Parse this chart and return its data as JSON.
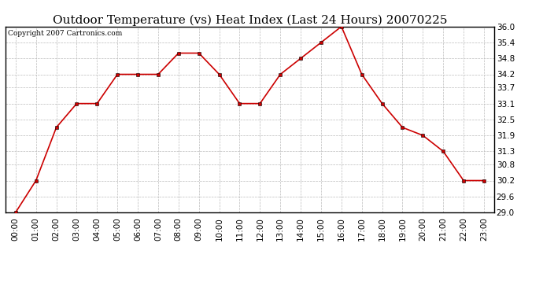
{
  "title": "Outdoor Temperature (vs) Heat Index (Last 24 Hours) 20070225",
  "copyright_text": "Copyright 2007 Cartronics.com",
  "x_labels": [
    "00:00",
    "01:00",
    "02:00",
    "03:00",
    "04:00",
    "05:00",
    "06:00",
    "07:00",
    "08:00",
    "09:00",
    "10:00",
    "11:00",
    "12:00",
    "13:00",
    "14:00",
    "15:00",
    "16:00",
    "17:00",
    "18:00",
    "19:00",
    "20:00",
    "21:00",
    "22:00",
    "23:00"
  ],
  "y_values": [
    29.0,
    30.2,
    32.2,
    33.1,
    33.1,
    34.2,
    34.2,
    34.2,
    35.0,
    35.0,
    34.2,
    33.1,
    33.1,
    34.2,
    34.8,
    35.4,
    36.0,
    34.2,
    33.1,
    32.2,
    31.9,
    31.3,
    30.2,
    30.2
  ],
  "line_color": "#cc0000",
  "marker": "s",
  "marker_size": 3,
  "background_color": "#ffffff",
  "plot_bg_color": "#ffffff",
  "grid_color": "#bbbbbb",
  "ylim_min": 29.0,
  "ylim_max": 36.0,
  "yticks": [
    29.0,
    29.6,
    30.2,
    30.8,
    31.3,
    31.9,
    32.5,
    33.1,
    33.7,
    34.2,
    34.8,
    35.4,
    36.0
  ],
  "title_fontsize": 11,
  "tick_fontsize": 7.5,
  "copyright_fontsize": 6.5
}
